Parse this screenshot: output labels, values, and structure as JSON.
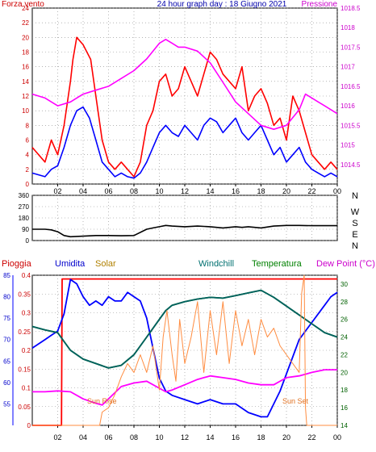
{
  "chart_data": [
    {
      "type": "line",
      "title": "24 hour graph day : 18 Giugno 2021",
      "left_axis_label": "Forza vento",
      "right_axis_label": "Pressione",
      "x_ticks": [
        "02",
        "04",
        "06",
        "08",
        "10",
        "12",
        "14",
        "16",
        "18",
        "20",
        "22",
        "00"
      ],
      "y_left": {
        "min": 0,
        "max": 24,
        "ticks": [
          0,
          2,
          4,
          6,
          8,
          10,
          12,
          14,
          16,
          18,
          20,
          22,
          24
        ]
      },
      "y_right": {
        "min": 1014,
        "max": 1018.5,
        "ticks": [
          1014.5,
          1015,
          1015.5,
          1016,
          1016.5,
          1017,
          1017.5,
          1018,
          1018.5
        ]
      },
      "grid": true,
      "series": [
        {
          "role": "wind_gust",
          "axis": "left",
          "color": "#ff0000",
          "x": [
            0,
            1,
            1.5,
            2,
            2.5,
            3,
            3.2,
            3.5,
            4,
            4.3,
            4.6,
            5,
            5.5,
            6,
            6.5,
            7,
            7.5,
            8,
            8.5,
            9,
            9.5,
            10,
            10.5,
            11,
            11.5,
            12,
            12.5,
            13,
            13.5,
            14,
            14.5,
            15,
            15.5,
            16,
            16.5,
            17,
            17.5,
            18,
            18.5,
            19,
            19.5,
            20,
            20.5,
            21,
            21.5,
            22,
            22.5,
            23,
            23.5,
            24
          ],
          "y": [
            5,
            3,
            6,
            4,
            8,
            14,
            17,
            20,
            19,
            18,
            17,
            12,
            6,
            3,
            2,
            3,
            2,
            1,
            3,
            8,
            10,
            14,
            15,
            12,
            13,
            16,
            14,
            12,
            15,
            18,
            17,
            15,
            14,
            13,
            16,
            10,
            12,
            13,
            11,
            8,
            9,
            6,
            12,
            10,
            7,
            4,
            3,
            2,
            3,
            2
          ]
        },
        {
          "role": "wind_speed",
          "axis": "left",
          "color": "#0000ff",
          "x": [
            0,
            1,
            1.5,
            2,
            2.5,
            3,
            3.5,
            4,
            4.5,
            5,
            5.5,
            6,
            6.5,
            7,
            7.5,
            8,
            8.5,
            9,
            9.5,
            10,
            10.5,
            11,
            11.5,
            12,
            12.5,
            13,
            13.5,
            14,
            14.5,
            15,
            15.5,
            16,
            16.5,
            17,
            17.5,
            18,
            18.5,
            19,
            19.5,
            20,
            20.5,
            21,
            21.5,
            22,
            22.5,
            23,
            23.5,
            24
          ],
          "y": [
            1.5,
            1,
            2,
            2.5,
            5,
            8,
            10,
            10.5,
            9,
            6,
            3,
            2,
            1,
            1.5,
            1,
            0.8,
            1.5,
            3,
            5,
            7,
            8,
            7,
            6.5,
            8,
            7,
            6,
            8,
            9,
            8.5,
            7,
            8,
            9,
            7,
            6,
            7,
            8,
            6,
            4,
            5,
            3,
            4,
            5,
            3,
            2,
            1.5,
            1,
            1.5,
            1
          ]
        },
        {
          "role": "pressure",
          "axis": "right",
          "color": "#ff00ff",
          "x": [
            0,
            1,
            2,
            3,
            4,
            5,
            6,
            7,
            8,
            9,
            10,
            10.5,
            11,
            11.5,
            12,
            13,
            14,
            15,
            16,
            17,
            18,
            19,
            20,
            20.5,
            21,
            21.5,
            22,
            22.5,
            23,
            24
          ],
          "y": [
            1016.3,
            1016.2,
            1016.0,
            1016.1,
            1016.3,
            1016.4,
            1016.5,
            1016.7,
            1016.9,
            1017.2,
            1017.6,
            1017.7,
            1017.6,
            1017.5,
            1017.5,
            1017.4,
            1017.1,
            1016.6,
            1016.1,
            1015.8,
            1015.5,
            1015.4,
            1015.5,
            1015.7,
            1015.9,
            1016.3,
            1016.2,
            1016.1,
            1016.0,
            1015.8
          ]
        }
      ]
    },
    {
      "type": "line",
      "y_left": {
        "min": 0,
        "max": 360,
        "ticks": [
          0,
          90,
          180,
          270,
          360
        ]
      },
      "y_right_labels": [
        "N",
        "W",
        "S",
        "E",
        "N"
      ],
      "x_ticks": [
        "02",
        "04",
        "06",
        "08",
        "10",
        "12",
        "14",
        "16",
        "18",
        "20",
        "22",
        "00"
      ],
      "grid": true,
      "series": [
        {
          "role": "wind_direction",
          "color": "#000000",
          "x": [
            0,
            1,
            1.5,
            2,
            2.5,
            3,
            4,
            5,
            6,
            7,
            8,
            9,
            9.5,
            10,
            10.5,
            11,
            12,
            13,
            14,
            15,
            16,
            16.5,
            17,
            18,
            19,
            20,
            21,
            22,
            23,
            24
          ],
          "y": [
            90,
            90,
            85,
            70,
            40,
            30,
            35,
            40,
            40,
            38,
            40,
            90,
            100,
            110,
            120,
            115,
            110,
            115,
            110,
            100,
            110,
            105,
            110,
            100,
            115,
            120,
            120,
            118,
            118,
            118
          ]
        }
      ]
    },
    {
      "type": "line",
      "labels": [
        "Pioggia",
        "Umidita",
        "Solar",
        "Windchill",
        "Temperatura",
        "Dew Point (°C)"
      ],
      "x_ticks": [
        "02",
        "04",
        "06",
        "08",
        "10",
        "12",
        "14",
        "16",
        "18",
        "20",
        "22",
        "00"
      ],
      "y_rain": {
        "min": 0,
        "max": 0.4,
        "ticks": [
          0,
          0.05,
          0.1,
          0.15,
          0.2,
          0.25,
          0.3,
          0.35,
          0.4
        ]
      },
      "y_humidity": {
        "min": 50,
        "max": 85,
        "ticks": [
          55,
          60,
          65,
          70,
          75,
          80,
          85
        ]
      },
      "y_temp": {
        "min": 14,
        "max": 31,
        "ticks": [
          14,
          16,
          18,
          20,
          22,
          24,
          26,
          28,
          30
        ]
      },
      "annotations": [
        "Sun Rise",
        "Sun Set"
      ],
      "grid": true,
      "series": [
        {
          "role": "rain",
          "axis": "rain",
          "color": "#ff0000",
          "x": [
            0,
            2.3,
            2.35,
            24
          ],
          "y": [
            0,
            0,
            0.39,
            0.39
          ]
        },
        {
          "role": "humidity",
          "axis": "humidity",
          "color": "#0000ff",
          "x": [
            0,
            0.5,
            1,
            1.5,
            2,
            2.5,
            3,
            3.5,
            4,
            4.5,
            5,
            5.5,
            6,
            6.5,
            7,
            7.5,
            8,
            8.5,
            9,
            9.5,
            10,
            10.5,
            11,
            12,
            13,
            14,
            15,
            16,
            17,
            18,
            18.5,
            19,
            19.5,
            20,
            20.5,
            21,
            21.5,
            22,
            22.5,
            23,
            23.5,
            24
          ],
          "y": [
            68,
            69,
            70,
            71,
            72,
            76,
            84,
            83,
            80,
            78,
            79,
            78,
            80,
            79,
            79,
            81,
            80,
            79,
            75,
            68,
            61,
            58,
            57,
            56,
            55,
            56,
            55,
            55,
            53,
            52,
            52,
            55,
            58,
            62,
            66,
            70,
            72,
            74,
            76,
            78,
            80,
            81
          ]
        },
        {
          "role": "temperature",
          "axis": "temp",
          "color": "#008000",
          "x": [
            0,
            1,
            2,
            2.5,
            3,
            4,
            5,
            6,
            7,
            8,
            9,
            10,
            10.5,
            11,
            12,
            13,
            14,
            15,
            16,
            17,
            18,
            19,
            20,
            21,
            22,
            23,
            24
          ],
          "y": [
            25.2,
            24.8,
            24.5,
            23.5,
            22.5,
            21.5,
            21,
            20.5,
            20.8,
            22,
            24,
            26,
            27,
            27.6,
            28,
            28.3,
            28.5,
            28.4,
            28.7,
            29,
            29.3,
            28.5,
            27.5,
            26.5,
            25.5,
            24.5,
            24.0
          ]
        },
        {
          "role": "windchill",
          "axis": "temp",
          "color": "#006060",
          "x": [
            0,
            1,
            2,
            2.5,
            3,
            4,
            5,
            6,
            7,
            8,
            9,
            10,
            10.5,
            11,
            12,
            13,
            14,
            15,
            16,
            17,
            18,
            19,
            20,
            21,
            22,
            23,
            24
          ],
          "y": [
            25.2,
            24.8,
            24.5,
            23.5,
            22.5,
            21.5,
            21,
            20.5,
            20.8,
            22,
            24,
            26,
            27,
            27.6,
            28,
            28.3,
            28.5,
            28.4,
            28.7,
            29,
            29.3,
            28.5,
            27.5,
            26.5,
            25.5,
            24.5,
            24.0
          ]
        },
        {
          "role": "dew_point",
          "axis": "temp",
          "color": "#ff00ff",
          "x": [
            0,
            1,
            2,
            3,
            4,
            5,
            5.5,
            6,
            7,
            8,
            9,
            10,
            10.5,
            11,
            12,
            13,
            14,
            15,
            16,
            17,
            18,
            19,
            20,
            21,
            22,
            23,
            24
          ],
          "y": [
            17.8,
            17.8,
            17.9,
            17.8,
            17,
            16.5,
            16.3,
            17,
            18.4,
            18.8,
            19,
            18.2,
            17.8,
            18,
            18.6,
            19.2,
            19.6,
            19.4,
            19.2,
            18.8,
            18.6,
            18.6,
            19.4,
            19.6,
            20.0,
            20.3,
            20.3
          ]
        },
        {
          "role": "solar",
          "axis": "temp",
          "color": "#ff8c40",
          "x": [
            0,
            5.3,
            5.5,
            6,
            6.5,
            7,
            7.5,
            8,
            8.5,
            9,
            9.5,
            10,
            10.3,
            10.6,
            11,
            11.3,
            11.6,
            12,
            12.5,
            13,
            13.5,
            14,
            14.5,
            15,
            15.5,
            16,
            16.5,
            17,
            17.5,
            18,
            18.5,
            19,
            19.5,
            20,
            20.5,
            21,
            21.2,
            21.4,
            21.5,
            21.6,
            22,
            24
          ],
          "y": [
            14,
            14,
            15.5,
            16,
            17.5,
            19.5,
            21,
            20,
            22,
            20,
            23,
            18,
            24,
            27,
            22,
            19,
            26,
            21,
            24,
            28,
            20,
            27,
            22,
            28,
            21,
            27,
            23,
            26,
            22,
            26,
            24,
            25,
            23,
            22,
            21,
            20,
            29,
            31,
            16,
            14,
            14,
            14
          ]
        }
      ]
    }
  ]
}
